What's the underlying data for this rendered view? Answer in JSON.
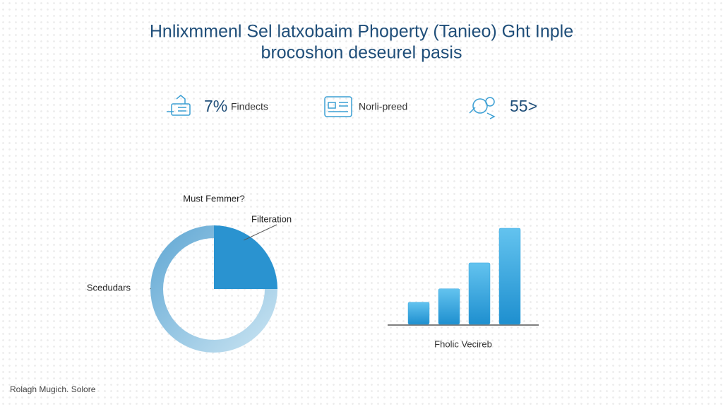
{
  "header": {
    "title": [
      "Hnlixmmenl Sel latxobaim Phoperty (Tanieo) Ght Inple",
      "brocoshon deseurel pasis"
    ]
  },
  "stats": [
    {
      "value": "7%",
      "label": "Findects"
    },
    {
      "label": "Norli-preed"
    },
    {
      "value": "55>"
    }
  ],
  "chart_data": [
    {
      "type": "pie",
      "title": "Must Femmer?",
      "categories": [
        "Filteration",
        "Scedudars"
      ],
      "values": [
        25,
        75
      ],
      "colors": [
        "#2a93d0",
        "#6fb1da"
      ]
    },
    {
      "type": "bar",
      "xlabel": "Fholic Vecireb",
      "categories": [
        null,
        null,
        null,
        null
      ],
      "values": [
        23,
        37,
        64,
        100
      ],
      "color": "#3aa8e0"
    }
  ],
  "footer": {
    "text": "Rolagh Mugich. Solore"
  }
}
